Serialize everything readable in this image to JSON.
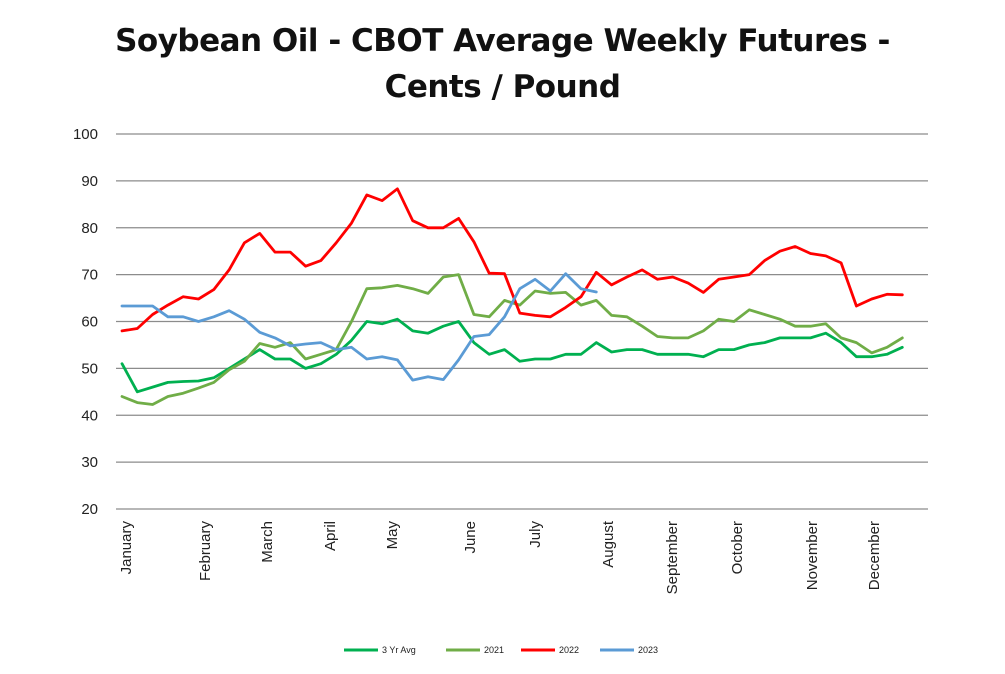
{
  "chart_data": {
    "type": "line",
    "title": "Soybean Oil - CBOT Average Weekly Futures -",
    "subtitle": "Cents / Pound",
    "xlabel": "",
    "ylabel": "",
    "ylim": [
      20,
      100
    ],
    "yticks": [
      "100",
      "90",
      "80",
      "70",
      "60",
      "50",
      "40",
      "30",
      "20"
    ],
    "months": [
      "January",
      "February",
      "March",
      "April",
      "May",
      "June",
      "July",
      "August",
      "September",
      "October",
      "November",
      "December"
    ],
    "grid": true,
    "legend_position": "bottom",
    "series": [
      {
        "name": "3 Yr Avg",
        "color": "#00b050",
        "values": [
          51,
          45,
          46,
          47,
          47.2,
          47.3,
          48,
          50,
          52,
          54,
          52,
          52,
          50,
          51,
          53,
          56,
          60,
          59.5,
          60.5,
          58,
          57.5,
          59,
          60,
          55.5,
          53,
          54,
          51.5,
          52,
          52,
          53,
          53,
          55.5,
          53.5,
          54,
          54,
          53,
          53,
          53,
          52.5,
          54,
          54,
          55,
          55.5,
          56.5,
          56.5,
          56.5,
          57.5,
          55.5,
          52.5,
          52.5,
          53,
          54.5
        ]
      },
      {
        "name": "2021",
        "color": "#70ad47",
        "values": [
          44,
          42.7,
          42.3,
          44,
          44.7,
          45.8,
          47,
          49.7,
          51.5,
          55.3,
          54.5,
          55.5,
          52,
          53,
          54,
          60,
          67,
          67.2,
          67.7,
          67,
          66,
          69.5,
          70,
          61.5,
          61,
          64.5,
          63.5,
          66.5,
          66,
          66.2,
          63.5,
          64.5,
          61.3,
          61,
          59,
          56.8,
          56.5,
          56.5,
          58,
          60.5,
          60,
          62.5,
          61.5,
          60.5,
          59,
          59,
          59.5,
          56.5,
          55.5,
          53.3,
          54.5,
          56.5
        ]
      },
      {
        "name": "2022",
        "color": "#ff0000",
        "values": [
          58,
          58.5,
          61.5,
          63.5,
          65.3,
          64.8,
          66.8,
          71,
          76.8,
          78.8,
          74.8,
          74.8,
          71.8,
          73,
          76.8,
          81,
          87,
          85.8,
          88.3,
          81.5,
          80,
          80,
          82,
          77,
          70.3,
          70.2,
          61.8,
          61.3,
          61,
          63,
          65.3,
          70.5,
          67.8,
          69.5,
          71,
          69,
          69.5,
          68.2,
          66.2,
          69,
          69.5,
          70,
          73,
          75,
          76,
          74.5,
          74,
          72.5,
          63.3,
          64.8,
          65.8,
          65.7
        ]
      },
      {
        "name": "2023",
        "color": "#5b9bd5",
        "values": [
          63.3,
          63.3,
          63.3,
          61,
          61,
          60,
          61,
          62.3,
          60.5,
          57.7,
          56.5,
          54.8,
          55.2,
          55.5,
          54,
          54.5,
          52,
          52.5,
          51.8,
          47.5,
          48.2,
          47.6,
          51.8,
          56.8,
          57.2,
          61,
          67,
          69,
          66.5,
          70.2,
          67,
          66.3
        ]
      }
    ]
  }
}
